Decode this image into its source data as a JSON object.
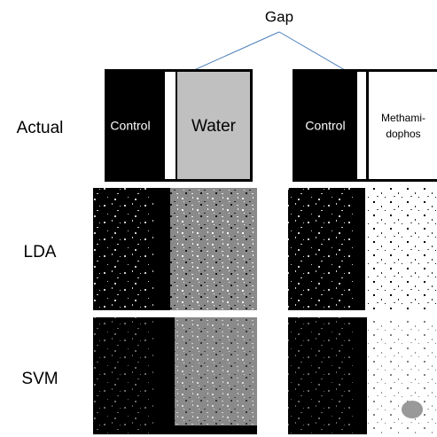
{
  "gap_label": "Gap",
  "rows": [
    "Actual",
    "LDA",
    "SVM"
  ],
  "left_panel": {
    "control": "Control",
    "treatment": "Water"
  },
  "right_panel": {
    "control": "Control",
    "treatment": [
      "Methami-",
      "dophos"
    ]
  }
}
